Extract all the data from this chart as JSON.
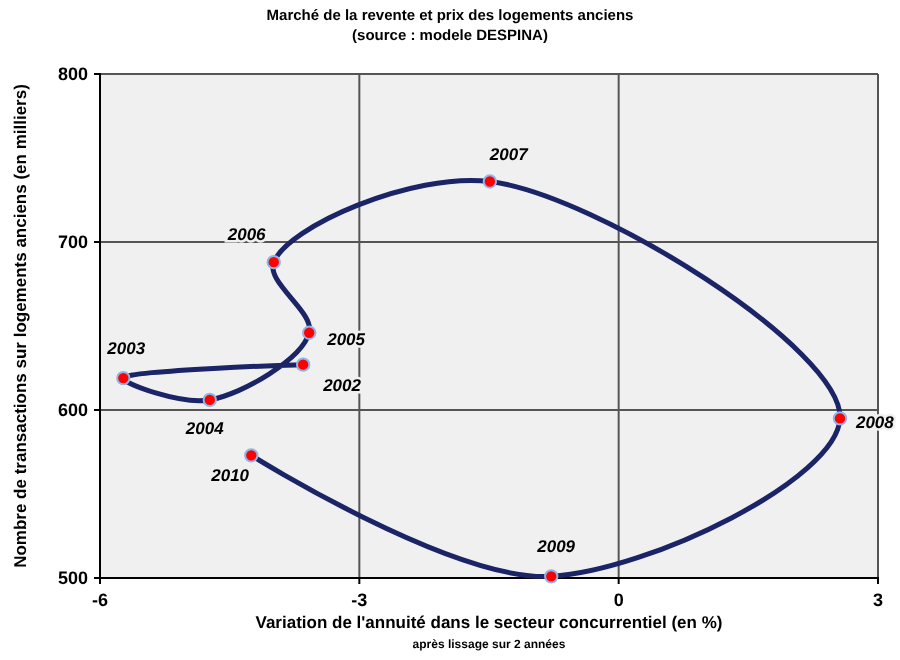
{
  "chart_data": {
    "type": "line",
    "title": "Marché de la revente et prix des logements anciens",
    "subtitle": "(source : modele DESPINA)",
    "xlabel": "Variation de l'annuité dans le secteur concurrentiel (en %)",
    "ylabel": "Nombre de transactions sur logements anciens (en milliers)",
    "x": [
      -3.65,
      -5.73,
      -4.73,
      -3.58,
      -3.99,
      -1.49,
      2.56,
      -0.78,
      -4.25
    ],
    "series": [
      {
        "color": "#1a2466",
        "values": [
          627,
          619,
          606,
          646,
          688,
          736,
          595,
          501,
          573
        ]
      },
      {
        "type": "scatter",
        "color": "#ff0000",
        "marker": "circle",
        "values": [
          627,
          619,
          606,
          646,
          688,
          736,
          595,
          501,
          573
        ]
      }
    ],
    "xlim": [
      -6,
      3
    ],
    "xticks": [
      -6,
      -3,
      0,
      3
    ],
    "ylim": [
      500,
      800
    ],
    "yticks": [
      500,
      600,
      700,
      800
    ],
    "grid": true,
    "annotations": [
      {
        "text": "2002",
        "x": -3.65,
        "y": 627
      },
      {
        "text": "2003",
        "x": -5.73,
        "y": 619
      },
      {
        "text": "2004",
        "x": -4.73,
        "y": 606
      },
      {
        "text": "2005",
        "x": -3.58,
        "y": 646
      },
      {
        "text": "2006",
        "x": -3.99,
        "y": 688
      },
      {
        "text": "2007",
        "x": -1.49,
        "y": 736
      },
      {
        "text": "2008",
        "x": 2.56,
        "y": 595
      },
      {
        "text": "2009",
        "x": -0.78,
        "y": 501
      },
      {
        "text": "2010",
        "x": -4.25,
        "y": 573
      },
      "après lissage sur 2 années"
    ]
  }
}
